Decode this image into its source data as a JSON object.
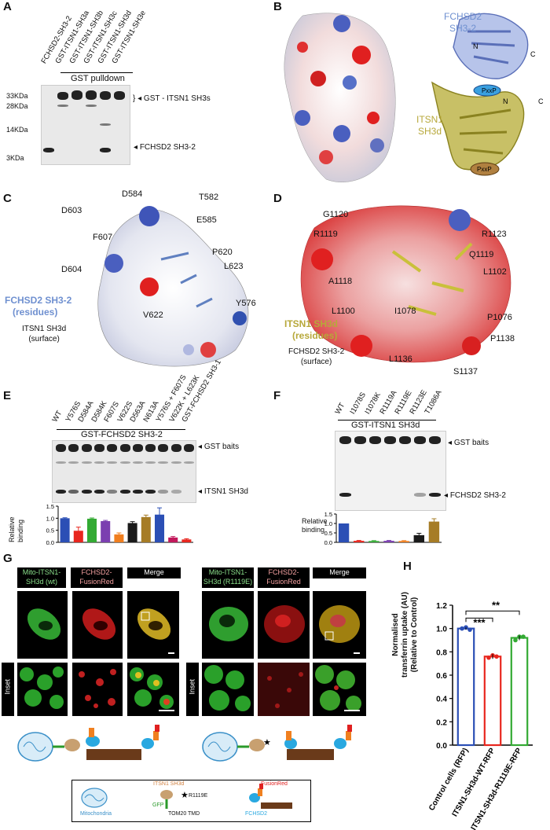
{
  "panels": {
    "A": {
      "letter": "A",
      "lanes": [
        "FCHSD2-SH3-2",
        "GST-ITSN1-SH3a",
        "GST-ITSN1-SH3b",
        "GST-ITSN1-SH3c",
        "GST-ITSN1-SH3d",
        "GST-ITSN1-SH3e"
      ],
      "group_label": "GST pulldown",
      "markers": [
        "33KDa",
        "28KDa",
        "14KDa",
        "3KDa"
      ],
      "band_labels": [
        "GST - ITSN1 SH3s",
        "FCHSD2 SH3-2"
      ]
    },
    "B": {
      "letter": "B",
      "label_fchsd2": [
        "FCHSD2",
        "SH3-2"
      ],
      "label_itsn1": [
        "ITSN1",
        "SH3d"
      ],
      "motif": "PxxP",
      "termini": [
        "N",
        "C",
        "N",
        "C"
      ]
    },
    "C": {
      "letter": "C",
      "residues": [
        "D584",
        "T582",
        "D603",
        "E585",
        "F607",
        "P620",
        "L623",
        "D604",
        "Y576",
        "V622"
      ],
      "title_lines": [
        "FCHSD2 SH3-2",
        "(residues)"
      ],
      "subtitle_lines": [
        "ITSN1 SH3d",
        "(surface)"
      ]
    },
    "D": {
      "letter": "D",
      "residues": [
        "G1120",
        "R1119",
        "R1123",
        "Q1119",
        "L1102",
        "A1118",
        "L1100",
        "I1078",
        "P1076",
        "P1138",
        "L1136",
        "S1137"
      ],
      "title_lines": [
        "ITSN1 SH3d",
        "(residues)"
      ],
      "subtitle_lines": [
        "FCHSD2 SH3-2",
        "(surface)"
      ]
    },
    "E": {
      "letter": "E",
      "lanes": [
        "WT",
        "Y576S",
        "D584A",
        "D584K",
        "F607S",
        "V622S",
        "D563A",
        "N613A",
        "Y576S + F607S",
        "V622K + L623K",
        "GST-FCHSD2 SH3-1"
      ],
      "group_label": "GST-FCHSD2 SH3-2",
      "band_labels": [
        "GST baits",
        "ITSN1 SH3d"
      ],
      "ylabel": [
        "Relative",
        "binding"
      ],
      "yticks": [
        "1.5",
        "1.0",
        "0.5",
        "0.0"
      ]
    },
    "F": {
      "letter": "F",
      "lanes": [
        "WT",
        "I1078S",
        "I1078K",
        "R1119A",
        "R1119E",
        "R1123E",
        "T1086A"
      ],
      "group_label": "GST-ITSN1 SH3d",
      "band_labels": [
        "GST baits",
        "FCHSD2 SH3-2"
      ],
      "ylabel": [
        "Relative",
        "binding"
      ],
      "yticks": [
        "1.5",
        "1.0",
        "0.5",
        "0.0"
      ]
    },
    "G": {
      "letter": "G",
      "left_headers": [
        "Mito-ITSN1-\nSH3d (wt)",
        "FCHSD2-\nFusionRed",
        "Merge"
      ],
      "right_headers": [
        "Mito-ITSN1-\nSH3d (R1119E)",
        "FCHSD2-\nFusionRed",
        "Merge"
      ],
      "inset_label": "Inset",
      "legend": {
        "mito": "Mitochondria",
        "itsn": "ITSN1 SH3d",
        "mut": "R1119E",
        "gfp": "GFP",
        "tmd": "TOM20 TMD",
        "fr": "FusionRed",
        "fch": "FCHSD2"
      }
    },
    "H": {
      "letter": "H",
      "sig1": "**",
      "sig2": "***",
      "ylabel": [
        "Normalised",
        "transferrin uptake (AU)",
        "(Relative to Control)"
      ],
      "yticks": [
        "1.2",
        "1.0",
        "0.8",
        "0.6",
        "0.4",
        "0.2",
        "0.0"
      ],
      "categories": [
        "Control cells (RFP)",
        "ITSN1-SH3d-WT-RFP",
        "ITSN1-SH3d-R1119E-RFP"
      ]
    }
  },
  "chart_data": [
    {
      "type": "bar",
      "panel": "E",
      "categories": [
        "WT",
        "Y576S",
        "D584A",
        "D584K",
        "F607S",
        "V622S",
        "D563A",
        "N613A",
        "Y576S + F607S",
        "V622K + L623K"
      ],
      "values": [
        1.0,
        0.48,
        0.98,
        0.88,
        0.33,
        0.8,
        1.05,
        1.15,
        0.2,
        0.12
      ],
      "errors": [
        0.02,
        0.15,
        0.03,
        0.03,
        0.06,
        0.06,
        0.08,
        0.28,
        0.04,
        0.03
      ],
      "colors": [
        "#2b4fb5",
        "#e8261e",
        "#33aa33",
        "#7b3fb0",
        "#f07e1e",
        "#1a1a1a",
        "#a67c26",
        "#2b4fb5",
        "#c2185b",
        "#e8261e"
      ],
      "ylabel": "Relative binding",
      "ylim": [
        0,
        1.5
      ],
      "yticks": [
        0.0,
        0.5,
        1.0,
        1.5
      ]
    },
    {
      "type": "bar",
      "panel": "F",
      "categories": [
        "WT",
        "I1078S",
        "I1078K",
        "R1119A",
        "R1119E",
        "R1123E",
        "T1086A"
      ],
      "values": [
        1.0,
        0.08,
        0.07,
        0.08,
        0.07,
        0.38,
        1.1
      ],
      "errors": [
        0.0,
        0.02,
        0.02,
        0.02,
        0.02,
        0.1,
        0.15
      ],
      "colors": [
        "#2b4fb5",
        "#e8261e",
        "#33aa33",
        "#7b3fb0",
        "#f07e1e",
        "#1a1a1a",
        "#a67c26"
      ],
      "ylabel": "Relative binding",
      "ylim": [
        0,
        1.5
      ],
      "yticks": [
        0.0,
        0.5,
        1.0,
        1.5
      ]
    },
    {
      "type": "bar",
      "panel": "H",
      "categories": [
        "Control cells (RFP)",
        "ITSN1-SH3d-WT-RFP",
        "ITSN1-SH3d-R1119E-RFP"
      ],
      "values": [
        1.0,
        0.76,
        0.92
      ],
      "errors": [
        0.01,
        0.02,
        0.02
      ],
      "points": [
        [
          1.0,
          1.01,
          0.99
        ],
        [
          0.75,
          0.77,
          0.76
        ],
        [
          0.9,
          0.93,
          0.93
        ]
      ],
      "colors": [
        "#2b4fb5",
        "#e8261e",
        "#33aa33"
      ],
      "ylabel": "Normalised transferrin uptake (AU) (Relative to Control)",
      "ylim": [
        0,
        1.2
      ],
      "yticks": [
        0.0,
        0.2,
        0.4,
        0.6,
        0.8,
        1.0,
        1.2
      ],
      "significance": [
        "***",
        "**"
      ]
    }
  ]
}
